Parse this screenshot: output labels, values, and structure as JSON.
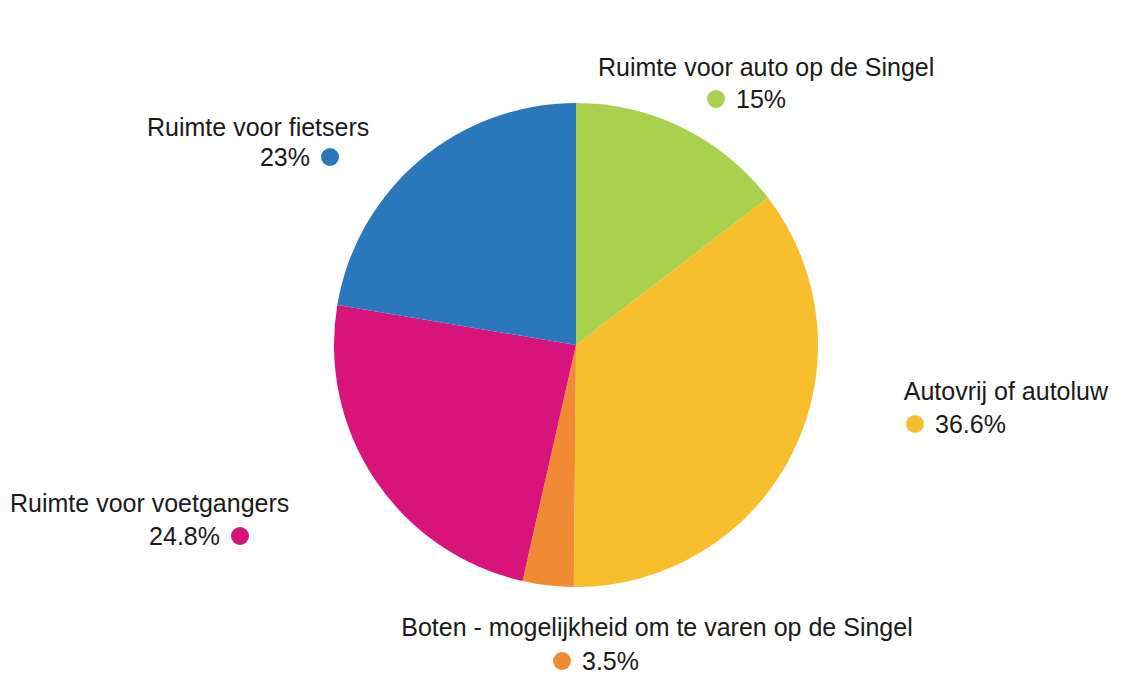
{
  "chart_data": {
    "type": "pie",
    "categories": [
      "Ruimte voor auto op de Singel",
      "Autovrij of autoluw",
      "Boten - mogelijkheid om te varen op de Singel",
      "Ruimte voor voetgangers",
      "Ruimte voor fietsers"
    ],
    "values": [
      15,
      36.6,
      3.5,
      24.8,
      23
    ],
    "value_labels": [
      "15%",
      "36.6%",
      "3.5%",
      "24.8%",
      "23%"
    ],
    "colors": [
      "#a9d14e",
      "#f7bf2e",
      "#f08a33",
      "#d8137b",
      "#2a78bb"
    ],
    "data_labels": true
  }
}
